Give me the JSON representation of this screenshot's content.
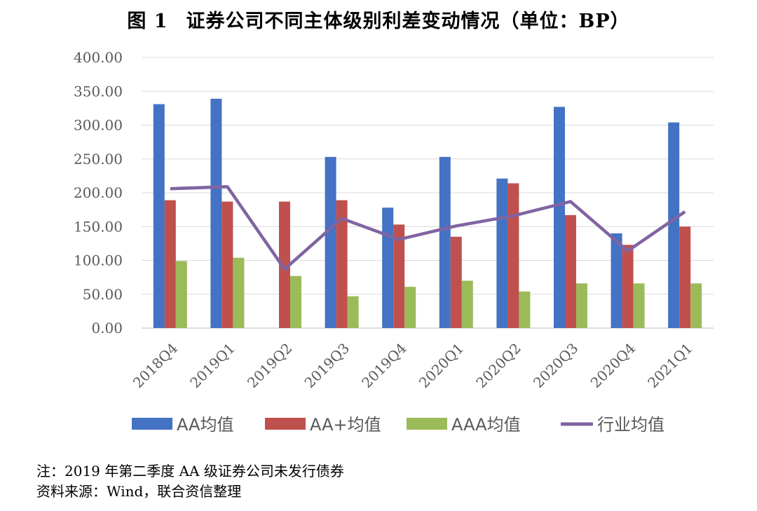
{
  "figure_number": "图 1",
  "figure_title": "证券公司不同主体级别利差变动情况（单位：BP）",
  "note": "注：2019 年第二季度 AA 级证券公司未发行债券",
  "source": "资料来源：Wind，联合资信整理",
  "colors": {
    "aa": "#4472C4",
    "aa_plus": "#C0504D",
    "aaa": "#9BBB59",
    "industry": "#8064A2",
    "grid": "#D9D9D9",
    "axis_text": "#595959"
  },
  "chart_data": {
    "type": "bar",
    "categories": [
      "2018Q4",
      "2019Q1",
      "2019Q2",
      "2019Q3",
      "2019Q4",
      "2020Q1",
      "2020Q2",
      "2020Q3",
      "2020Q4",
      "2021Q1"
    ],
    "y_tick_labels": [
      "0.00",
      "50.00",
      "100.00",
      "150.00",
      "200.00",
      "250.00",
      "300.00",
      "350.00",
      "400.00"
    ],
    "ylim": [
      0,
      400
    ],
    "grid": true,
    "legend_position": "bottom",
    "series": [
      {
        "name": "AA均值",
        "kind": "bar",
        "color_key": "aa",
        "values": [
          331,
          339,
          null,
          253,
          178,
          253,
          221,
          327,
          140,
          304
        ]
      },
      {
        "name": "AA+均值",
        "kind": "bar",
        "color_key": "aa_plus",
        "values": [
          189,
          187,
          187,
          189,
          153,
          135,
          214,
          167,
          123,
          150
        ]
      },
      {
        "name": "AAA均值",
        "kind": "bar",
        "color_key": "aaa",
        "values": [
          99,
          104,
          77,
          47,
          61,
          70,
          54,
          66,
          66,
          66
        ]
      },
      {
        "name": "行业均值",
        "kind": "line",
        "color_key": "industry",
        "values": [
          206,
          209,
          87,
          162,
          131,
          151,
          166,
          187,
          114,
          172
        ]
      }
    ]
  }
}
